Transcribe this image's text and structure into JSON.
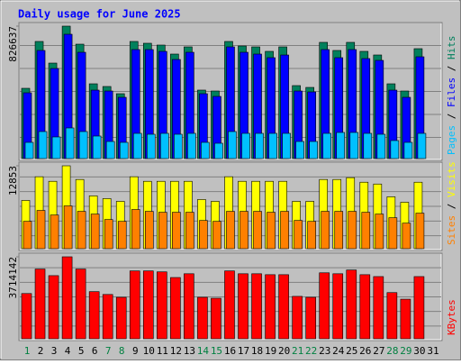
{
  "title": "Daily usage for June 2025",
  "chart_data": [
    {
      "type": "bar",
      "ylim": [
        0,
        826637
      ],
      "yticks": [
        826637
      ],
      "series": [
        {
          "name": "Hits",
          "color": "#00805c",
          "values": [
            438600,
            731000,
            596000,
            826637,
            714100,
            466700,
            449900,
            404900,
            731000,
            719800,
            708500,
            652300,
            697300,
            427400,
            421700,
            731000,
            702900,
            697300,
            669200,
            697300,
            455500,
            444200,
            725400,
            674800,
            725400,
            669200,
            646700,
            466700,
            421700,
            686000,
            null
          ]
        },
        {
          "name": "Files",
          "color": "#0000ff",
          "values": [
            410500,
            674800,
            562300,
            776000,
            663500,
            427300,
            421700,
            382400,
            680400,
            680400,
            669100,
            618500,
            663500,
            404900,
            388000,
            697300,
            663500,
            652300,
            629800,
            646600,
            421700,
            416100,
            680400,
            629800,
            680400,
            624200,
            612900,
            427300,
            382400,
            635400,
            null
          ]
        },
        {
          "name": "Pages",
          "color": "#00c0ff",
          "values": [
            101200,
            168700,
            135000,
            191200,
            168700,
            140600,
            106800,
            101200,
            157400,
            151800,
            157400,
            151800,
            157400,
            101200,
            95600,
            168700,
            157400,
            157400,
            157400,
            157400,
            106800,
            106800,
            157400,
            163100,
            163100,
            157400,
            151800,
            112500,
            101200,
            157400,
            null
          ]
        }
      ]
    },
    {
      "type": "bar",
      "ylim": [
        0,
        12853
      ],
      "yticks": [
        12853
      ],
      "series": [
        {
          "name": "Visits",
          "color": "#ffff00",
          "values": [
            7484,
            11155,
            10449,
            12853,
            10731,
            8190,
            7766,
            7342,
            11155,
            10449,
            10449,
            10449,
            10449,
            7625,
            7342,
            11155,
            10449,
            10449,
            10449,
            10449,
            7342,
            7342,
            10731,
            10731,
            11014,
            10308,
            10025,
            8048,
            7201,
            10308,
            null
          ]
        },
        {
          "name": "Sites",
          "color": "#ff8000",
          "values": [
            4236,
            5930,
            5224,
            6636,
            5789,
            5366,
            4518,
            4236,
            6072,
            5789,
            5648,
            5648,
            5648,
            4377,
            4236,
            5789,
            5789,
            5789,
            5648,
            5789,
            4377,
            4236,
            5789,
            5789,
            5789,
            5648,
            5366,
            4801,
            3954,
            5507,
            null
          ]
        }
      ]
    },
    {
      "type": "bar",
      "ylim": [
        0,
        3714142
      ],
      "yticks": [
        3714142
      ],
      "categories": [
        "1",
        "2",
        "3",
        "4",
        "5",
        "6",
        "7",
        "8",
        "9",
        "10",
        "11",
        "12",
        "13",
        "14",
        "15",
        "16",
        "17",
        "18",
        "19",
        "20",
        "21",
        "22",
        "23",
        "24",
        "25",
        "26",
        "27",
        "28",
        "29",
        "30",
        "31"
      ],
      "weekend_color": "#008040",
      "weekends": [
        1,
        7,
        8,
        14,
        15,
        21,
        22,
        28,
        29
      ],
      "series": [
        {
          "name": "KBytes",
          "color": "#ff0000",
          "values": [
            2049200,
            3159100,
            2860300,
            3714142,
            3159100,
            2134600,
            2006500,
            1878400,
            3073800,
            3073800,
            3031100,
            2774900,
            2945700,
            1878400,
            1835700,
            3073800,
            2945700,
            2945700,
            2903000,
            2903000,
            1921100,
            1878400,
            2988400,
            2945700,
            3116400,
            2903000,
            2817600,
            2091900,
            1793000,
            2817600,
            null
          ]
        }
      ]
    }
  ]
}
